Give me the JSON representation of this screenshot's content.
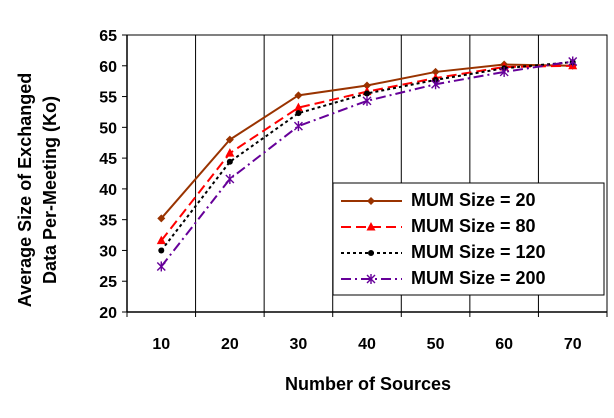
{
  "chart_data": {
    "type": "line",
    "title": "",
    "xlabel": "Number of Sources",
    "ylabel_lines": [
      "Average Size of Exchanged",
      "Data Per-Meeting (Ko)"
    ],
    "x": [
      10,
      20,
      30,
      40,
      50,
      60,
      70
    ],
    "x_tick_labels": [
      "10",
      "20",
      "30",
      "40",
      "50",
      "60",
      "70"
    ],
    "ylim": [
      20,
      65
    ],
    "y_ticks": [
      20,
      25,
      30,
      35,
      40,
      45,
      50,
      55,
      60,
      65
    ],
    "grid": "vertical lines at category boundaries",
    "legend_position": "bottom-right",
    "series": [
      {
        "name": "MUM Size = 20",
        "color": "#993300",
        "dash": "solid",
        "marker": "diamond",
        "values": [
          35.2,
          48.0,
          55.2,
          56.8,
          59.0,
          60.2,
          60.0
        ]
      },
      {
        "name": "MUM Size = 80",
        "color": "#ff0000",
        "dash": "long-dash",
        "marker": "triangle",
        "values": [
          31.6,
          45.8,
          53.2,
          55.8,
          58.0,
          59.8,
          60.0
        ]
      },
      {
        "name": "MUM Size = 120",
        "color": "#000000",
        "dash": "dotted",
        "marker": "circle",
        "values": [
          30.0,
          44.4,
          52.3,
          55.5,
          57.7,
          59.6,
          60.6
        ]
      },
      {
        "name": "MUM Size = 200",
        "color": "#660099",
        "dash": "dash-dot",
        "marker": "star",
        "values": [
          27.4,
          41.6,
          50.2,
          54.3,
          57.0,
          59.0,
          60.7
        ]
      }
    ]
  }
}
